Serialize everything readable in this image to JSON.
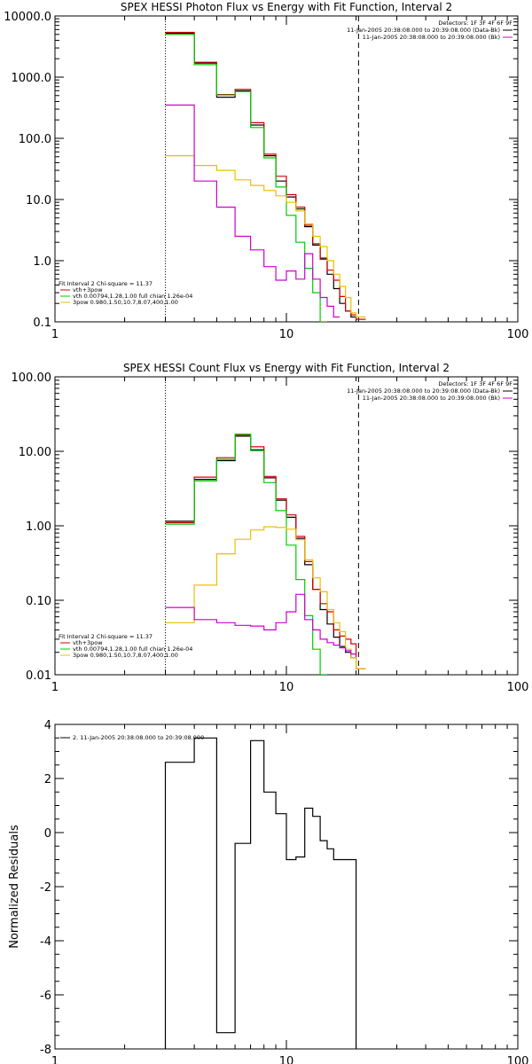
{
  "chart_data": [
    {
      "type": "line",
      "title": "SPEX HESSI Photon Flux vs Energy with Fit Function, Interval 2",
      "xscale": "log",
      "yscale": "log",
      "xlim": [
        1,
        100
      ],
      "ylim": [
        0.1,
        10000
      ],
      "xticks": [
        {
          "v": 1,
          "label": "1"
        },
        {
          "v": 10,
          "label": "10"
        },
        {
          "v": 100,
          "label": "100"
        }
      ],
      "yticks": [
        {
          "v": 10000,
          "label": "10000.0"
        },
        {
          "v": 1000,
          "label": "1000.0"
        },
        {
          "v": 100,
          "label": "100.0"
        },
        {
          "v": 10,
          "label": "10.0"
        },
        {
          "v": 1,
          "label": "1.0"
        },
        {
          "v": 0.1,
          "label": "0.1"
        }
      ],
      "vlines": [
        {
          "x": 3,
          "style": "dotted"
        },
        {
          "x": 20.5,
          "style": "dashed"
        }
      ],
      "legend_right": [
        {
          "text": "Detectors: 1F 3F 4F 6F 9F",
          "color": ""
        },
        {
          "text": "11-Jan-2005 20:38:08.000 to 20:39:08.000 (Data-Bk)",
          "color": "#000000"
        },
        {
          "text": "11-Jan-2005 20:38:08.000 to 20:39:08.000 (Bk)",
          "color": "#cc00cc"
        }
      ],
      "legend_left": [
        {
          "text": "Fit Interval 2    Chi-square = 11.37",
          "color": ""
        },
        {
          "text": "vth+3pow",
          "color": "#d40000"
        },
        {
          "text": "vth 0.00794,1.28,1.00  full chian 1.26e-04",
          "color": "#00cc00"
        },
        {
          "text": "3pow 0.980,1.50,10.7,8.07,400,1.00",
          "color": "#e8c000"
        }
      ],
      "series": [
        {
          "color": "#000000",
          "edges": [
            3,
            4,
            5,
            6,
            7,
            8,
            9,
            10,
            11,
            12,
            13,
            14,
            15,
            16,
            17,
            18,
            19,
            20
          ],
          "values": [
            5200,
            1700,
            470,
            600,
            165,
            52,
            20,
            11,
            7,
            3.6,
            1.8,
            1.1,
            0.6,
            0.35,
            0.2,
            0.15,
            0.12
          ]
        },
        {
          "color": "#d40000",
          "edges": [
            3,
            4,
            5,
            6,
            7,
            8,
            9,
            10,
            11,
            12,
            13,
            14,
            15,
            16,
            17,
            18,
            19,
            20,
            22
          ],
          "values": [
            5400,
            1750,
            520,
            630,
            180,
            55,
            24,
            12,
            7.5,
            3.8,
            1.9,
            1.05,
            0.7,
            0.48,
            0.26,
            0.15,
            0.13,
            0.11
          ]
        },
        {
          "color": "#00cc00",
          "edges": [
            3,
            4,
            5,
            6,
            7,
            8,
            9,
            10,
            11,
            12,
            13,
            14,
            15
          ],
          "values": [
            5000,
            1600,
            510,
            580,
            150,
            48,
            16,
            5.5,
            2.0,
            0.75,
            0.3,
            0.1
          ]
        },
        {
          "color": "#e8c000",
          "edges": [
            3,
            4,
            5,
            6,
            7,
            8,
            9,
            10,
            11,
            12,
            13,
            14,
            15,
            16,
            17,
            18,
            19,
            20,
            22
          ],
          "values": [
            52,
            36,
            30,
            21,
            17,
            14,
            11.5,
            9,
            6.5,
            4,
            2.5,
            1.7,
            1.0,
            0.6,
            0.38,
            0.25,
            0.14,
            0.12
          ]
        },
        {
          "color": "#cc00cc",
          "edges": [
            3,
            4,
            5,
            6,
            7,
            8,
            9,
            10,
            11,
            12,
            13,
            14,
            15,
            16,
            17
          ],
          "values": [
            350,
            20,
            7.5,
            2.5,
            1.5,
            0.8,
            0.48,
            0.68,
            0.5,
            1.3,
            0.5,
            0.25,
            0.18,
            0.12
          ]
        }
      ]
    },
    {
      "type": "line",
      "title": "SPEX HESSI Count Flux vs Energy with Fit Function, Interval 2",
      "xscale": "log",
      "yscale": "log",
      "xlim": [
        1,
        100
      ],
      "ylim": [
        0.01,
        100
      ],
      "xticks": [
        {
          "v": 1,
          "label": "1"
        },
        {
          "v": 10,
          "label": "10"
        },
        {
          "v": 100,
          "label": "100"
        }
      ],
      "yticks": [
        {
          "v": 100,
          "label": "100.00"
        },
        {
          "v": 10,
          "label": "10.00"
        },
        {
          "v": 1,
          "label": "1.00"
        },
        {
          "v": 0.1,
          "label": "0.10"
        },
        {
          "v": 0.01,
          "label": "0.01"
        }
      ],
      "vlines": [
        {
          "x": 3,
          "style": "dotted"
        },
        {
          "x": 20.5,
          "style": "dashed"
        }
      ],
      "legend_right": [
        {
          "text": "Detectors: 1F 3F 4F 6F 9F",
          "color": ""
        },
        {
          "text": "11-Jan-2005 20:38:08.000 to 20:39:08.000 (Data-Bk)",
          "color": "#000000"
        },
        {
          "text": "11-Jan-2005 20:38:08.000 to 20:39:08.000 (Bk)",
          "color": "#cc00cc"
        }
      ],
      "legend_left": [
        {
          "text": "Fit Interval 2    Chi-square = 11.37",
          "color": ""
        },
        {
          "text": "vth+3pow",
          "color": "#d40000"
        },
        {
          "text": "vth 0.00794,1.28,1.00  full chian 1.26e-04",
          "color": "#00cc00"
        },
        {
          "text": "3pow 0.980,1.50,10.7,8.07,400,1.00",
          "color": "#e8c000"
        }
      ],
      "series": [
        {
          "color": "#000000",
          "edges": [
            3,
            4,
            5,
            6,
            7,
            8,
            9,
            10,
            11,
            12,
            13,
            14,
            15,
            16,
            17,
            18,
            19,
            20
          ],
          "values": [
            1.15,
            4.2,
            7.5,
            16,
            10.5,
            4.4,
            2.2,
            1.3,
            0.68,
            0.3,
            0.14,
            0.075,
            0.048,
            0.032,
            0.024,
            0.02,
            0.017
          ]
        },
        {
          "color": "#d40000",
          "edges": [
            3,
            4,
            5,
            6,
            7,
            8,
            9,
            10,
            11,
            12,
            13,
            14,
            15,
            16,
            17,
            18,
            19,
            20,
            22
          ],
          "values": [
            1.1,
            4.5,
            8.2,
            16.5,
            11.5,
            4.6,
            2.3,
            1.4,
            0.72,
            0.33,
            0.14,
            0.09,
            0.07,
            0.04,
            0.033,
            0.03,
            0.026,
            0.012
          ]
        },
        {
          "color": "#00cc00",
          "edges": [
            3,
            4,
            5,
            6,
            7,
            8,
            9,
            10,
            11,
            12,
            13,
            14,
            15
          ],
          "values": [
            1.05,
            4.0,
            7.8,
            17,
            10.2,
            3.8,
            1.6,
            0.55,
            0.19,
            0.062,
            0.022,
            0.01
          ]
        },
        {
          "color": "#e8c000",
          "edges": [
            3,
            4,
            5,
            6,
            7,
            8,
            9,
            10,
            11,
            12,
            13,
            14,
            15,
            16,
            17,
            18,
            19,
            20,
            22
          ],
          "values": [
            0.05,
            0.16,
            0.42,
            0.66,
            0.88,
            0.97,
            0.95,
            0.9,
            0.65,
            0.35,
            0.2,
            0.13,
            0.075,
            0.05,
            0.038,
            0.022,
            0.017,
            0.012
          ]
        },
        {
          "color": "#cc00cc",
          "edges": [
            3,
            4,
            5,
            6,
            7,
            8,
            9,
            10,
            11,
            12,
            13,
            14,
            15,
            16,
            17,
            18,
            19,
            20
          ],
          "values": [
            0.08,
            0.055,
            0.05,
            0.046,
            0.045,
            0.04,
            0.05,
            0.07,
            0.12,
            0.055,
            0.04,
            0.03,
            0.027,
            0.025,
            0.023,
            0.021,
            0.019
          ]
        }
      ]
    },
    {
      "type": "line",
      "title": "",
      "ylabel": "Normalized Residuals",
      "xscale": "log",
      "yscale": "linear",
      "xlim": [
        1,
        100
      ],
      "ylim": [
        -8,
        4
      ],
      "xticks": [
        {
          "v": 1,
          "label": "1"
        },
        {
          "v": 10,
          "label": "10"
        },
        {
          "v": 100,
          "label": "100"
        }
      ],
      "yticks": [
        {
          "v": 4,
          "label": "4"
        },
        {
          "v": 2,
          "label": "2"
        },
        {
          "v": 0,
          "label": "0"
        },
        {
          "v": -2,
          "label": "-2"
        },
        {
          "v": -4,
          "label": "-4"
        },
        {
          "v": -6,
          "label": "-6"
        },
        {
          "v": -8,
          "label": "-8"
        }
      ],
      "vlines": [],
      "legend_right": [],
      "legend_left": [
        {
          "text": "2. 11-Jan-2005 20:38:08.000 to 20:39:08.000",
          "color": "#000000"
        }
      ],
      "series": [
        {
          "color": "#000000",
          "drop_to_bottom": true,
          "edges": [
            3,
            4,
            5,
            6,
            7,
            8,
            9,
            10,
            11,
            12,
            13,
            14,
            15,
            16,
            17,
            18,
            19,
            20
          ],
          "values": [
            2.6,
            3.5,
            -7.4,
            -0.4,
            3.4,
            1.5,
            0.7,
            -1.0,
            -0.9,
            0.9,
            0.6,
            -0.3,
            -0.6,
            -1.0,
            -1.0,
            -1.0,
            -1.0
          ]
        }
      ]
    }
  ]
}
